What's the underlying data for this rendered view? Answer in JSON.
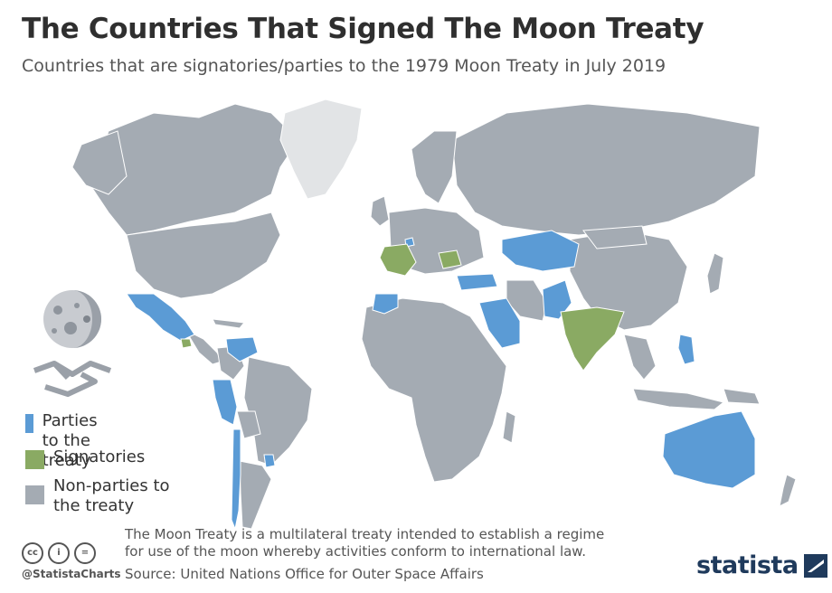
{
  "header": {
    "title": "The Countries That Signed The Moon Treaty",
    "subtitle": "Countries that are signatories/parties to the 1979 Moon Treaty in July 2019"
  },
  "legend": {
    "items": [
      {
        "label": "Parties to the treaty",
        "color": "#5b9bd5"
      },
      {
        "label": "Signatories",
        "color": "#8aaa63"
      },
      {
        "label": "Non-parties to the treaty",
        "color": "#a4abb3"
      }
    ]
  },
  "colors": {
    "party": "#5b9bd5",
    "signatory": "#8aaa63",
    "non_party": "#a4abb3",
    "greenland": "#e2e4e6",
    "border": "#ffffff"
  },
  "map": {
    "parties": [
      "Australia",
      "Mexico",
      "Peru",
      "Venezuela",
      "Chile",
      "Uruguay",
      "Morocco",
      "Saudi Arabia",
      "Pakistan",
      "Kazakhstan",
      "Turkey",
      "Philippines",
      "Netherlands",
      "Belgium",
      "Austria",
      "Kuwait",
      "Lebanon"
    ],
    "signatories": [
      "France",
      "India",
      "Romania",
      "Guatemala"
    ],
    "icons": [
      "moon-icon",
      "handshake-icon"
    ]
  },
  "footer": {
    "note_line1": "The Moon Treaty is a multilateral treaty intended to establish a regime",
    "note_line2": "for use of the moon whereby activities conform to international law.",
    "source": "Source: United Nations Office for Outer Space Affairs",
    "handle": "@StatistaCharts",
    "cc_icons": [
      "cc",
      "i",
      "="
    ],
    "brand": "statista"
  }
}
